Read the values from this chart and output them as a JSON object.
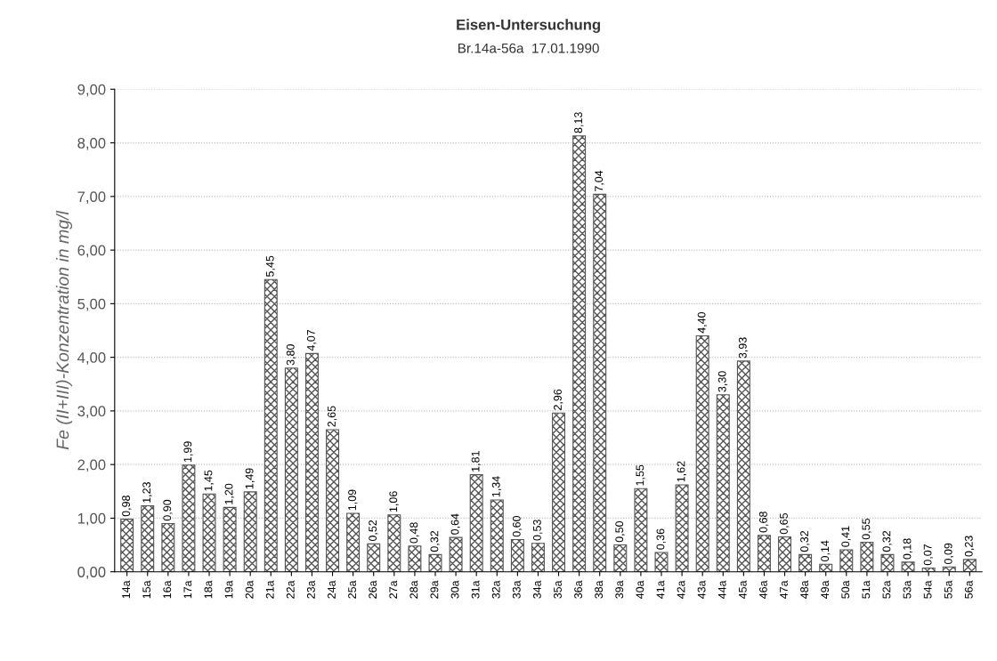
{
  "chart_data": {
    "type": "bar",
    "title": "Eisen-Untersuchung",
    "subtitle": "Br.14a-56a  17.01.1990",
    "ylabel": "Fe (II+III)-Konzentration in mg/l",
    "categories": [
      "14a",
      "15a",
      "16a",
      "17a",
      "18a",
      "19a",
      "20a",
      "21a",
      "22a",
      "23a",
      "24a",
      "25a",
      "26a",
      "27a",
      "28a",
      "29a",
      "30a",
      "31a",
      "32a",
      "33a",
      "34a",
      "35a",
      "36a",
      "38a",
      "39a",
      "40a",
      "41a",
      "42a",
      "43a",
      "44a",
      "45a",
      "46a",
      "47a",
      "48a",
      "49a",
      "50a",
      "51a",
      "52a",
      "53a",
      "54a",
      "55a",
      "56a"
    ],
    "values": [
      0.98,
      1.23,
      0.9,
      1.99,
      1.45,
      1.2,
      1.49,
      5.45,
      3.8,
      4.07,
      2.65,
      1.09,
      0.52,
      1.06,
      0.48,
      0.32,
      0.64,
      1.81,
      1.34,
      0.6,
      0.53,
      2.96,
      8.13,
      7.04,
      0.5,
      1.55,
      0.36,
      1.62,
      4.4,
      3.3,
      3.93,
      0.68,
      0.65,
      0.32,
      0.14,
      0.41,
      0.55,
      0.32,
      0.18,
      0.07,
      0.09,
      0.23
    ],
    "value_labels": [
      "0,98",
      "1,23",
      "0,90",
      "1,99",
      "1,45",
      "1,20",
      "1,49",
      "5,45",
      "3,80",
      "4,07",
      "2,65",
      "1,09",
      "0,52",
      "1,06",
      "0,48",
      "0,32",
      "0,64",
      "1,81",
      "1,34",
      "0,60",
      "0,53",
      "2,96",
      "8,13",
      "7,04",
      "0,50",
      "1,55",
      "0,36",
      "1,62",
      "4,40",
      "3,30",
      "3,93",
      "0,68",
      "0,65",
      "0,32",
      "0,14",
      "0,41",
      "0,55",
      "0,32",
      "0,18",
      "0,07",
      "0,09",
      "0,23"
    ],
    "color": "#555555",
    "ylim": [
      0,
      9
    ],
    "yticks": [
      {
        "value": 0,
        "label": "0,00"
      },
      {
        "value": 1,
        "label": "1,00"
      },
      {
        "value": 2,
        "label": "2,00"
      },
      {
        "value": 3,
        "label": "3,00"
      },
      {
        "value": 4,
        "label": "4,00"
      },
      {
        "value": 5,
        "label": "5,00"
      },
      {
        "value": 6,
        "label": "6,00"
      },
      {
        "value": 7,
        "label": "7,00"
      },
      {
        "value": 8,
        "label": "8,00"
      },
      {
        "value": 9,
        "label": "9,00"
      }
    ],
    "grid": "y",
    "legend": false
  }
}
